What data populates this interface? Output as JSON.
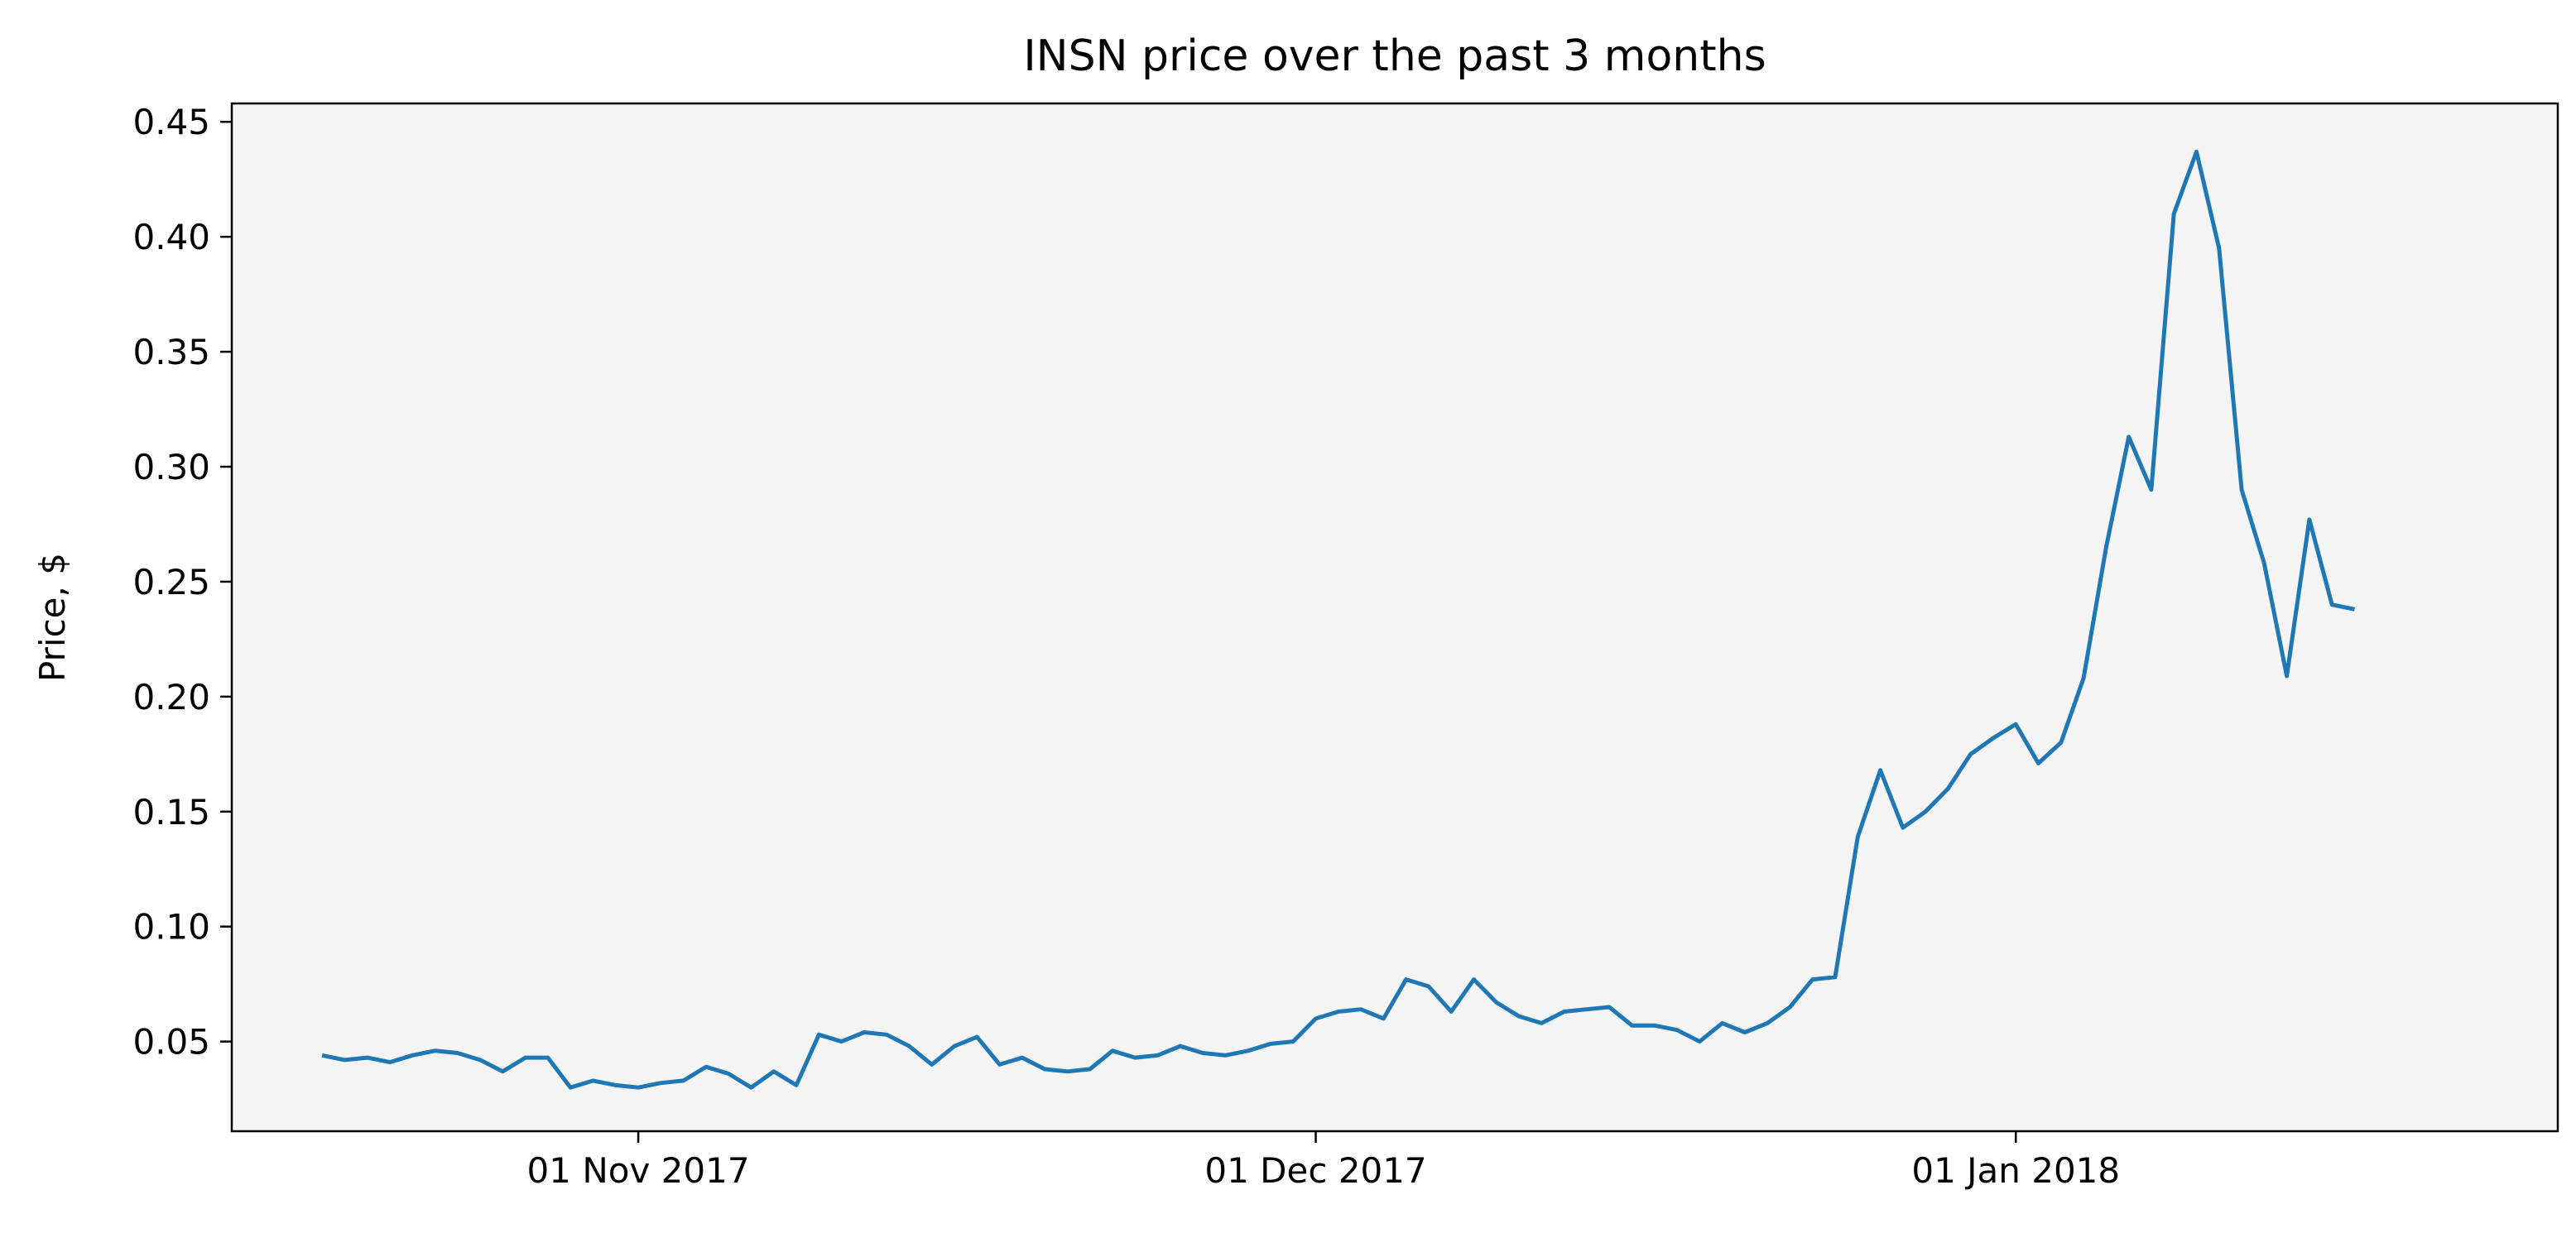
{
  "chart_data": {
    "type": "line",
    "title": "INSN price over the past 3 months",
    "xlabel": "",
    "ylabel": "Price, $",
    "x_start": "2017-10-18",
    "x_end": "2018-01-21",
    "xlim": [
      "2017-10-14",
      "2018-01-25"
    ],
    "ylim": [
      0.011,
      0.458
    ],
    "x_ticks": [
      {
        "date": "2017-11-01",
        "label": "01 Nov 2017"
      },
      {
        "date": "2017-12-01",
        "label": "01 Dec 2017"
      },
      {
        "date": "2018-01-01",
        "label": "01 Jan 2018"
      }
    ],
    "y_ticks": [
      {
        "value": 0.05,
        "label": "0.05"
      },
      {
        "value": 0.1,
        "label": "0.10"
      },
      {
        "value": 0.15,
        "label": "0.15"
      },
      {
        "value": 0.2,
        "label": "0.20"
      },
      {
        "value": 0.25,
        "label": "0.25"
      },
      {
        "value": 0.3,
        "label": "0.30"
      },
      {
        "value": 0.35,
        "label": "0.35"
      },
      {
        "value": 0.4,
        "label": "0.40"
      },
      {
        "value": 0.45,
        "label": "0.45"
      }
    ],
    "grid": false,
    "plot_background": "#f4f4f4",
    "series": [
      {
        "color": "#1f77b4",
        "values": [
          0.044,
          0.042,
          0.043,
          0.041,
          0.044,
          0.046,
          0.045,
          0.042,
          0.037,
          0.043,
          0.043,
          0.03,
          0.033,
          0.031,
          0.03,
          0.032,
          0.033,
          0.039,
          0.036,
          0.03,
          0.037,
          0.031,
          0.053,
          0.05,
          0.054,
          0.053,
          0.048,
          0.04,
          0.048,
          0.052,
          0.04,
          0.043,
          0.038,
          0.037,
          0.038,
          0.046,
          0.043,
          0.044,
          0.048,
          0.045,
          0.044,
          0.046,
          0.049,
          0.05,
          0.06,
          0.063,
          0.064,
          0.06,
          0.077,
          0.074,
          0.063,
          0.077,
          0.067,
          0.061,
          0.058,
          0.063,
          0.064,
          0.065,
          0.057,
          0.057,
          0.055,
          0.05,
          0.058,
          0.054,
          0.058,
          0.065,
          0.077,
          0.078,
          0.139,
          0.168,
          0.143,
          0.15,
          0.16,
          0.175,
          0.182,
          0.188,
          0.171,
          0.18,
          0.208,
          0.265,
          0.313,
          0.29,
          0.41,
          0.437,
          0.395,
          0.29,
          0.258,
          0.209,
          0.277,
          0.24,
          0.238
        ]
      }
    ]
  }
}
